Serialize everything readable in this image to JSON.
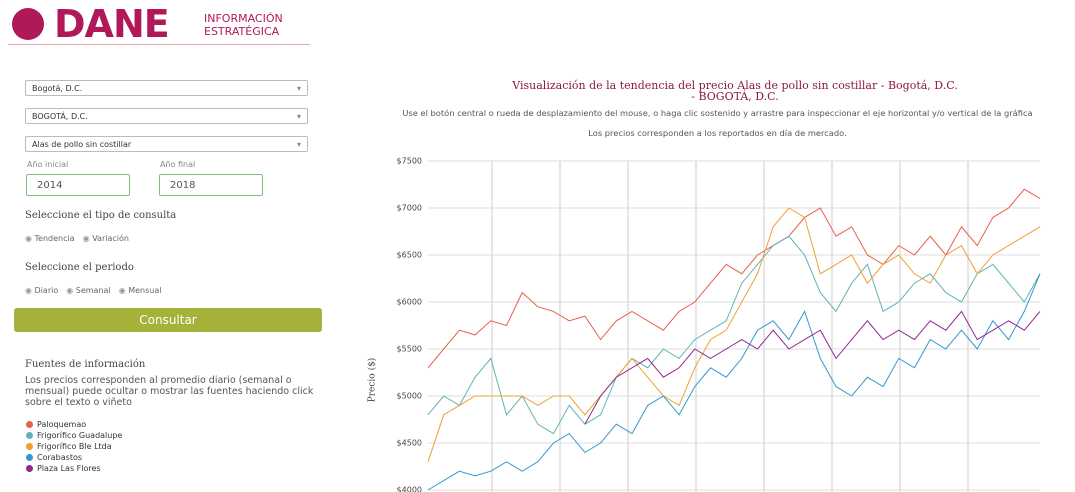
{
  "header": {
    "brand": "DANE",
    "tagline": [
      "INFORMACIÓN",
      "ESTRATÉGICA"
    ]
  },
  "form": {
    "department": "Bogotá, D.C.",
    "city": "BOGOTÁ, D.C.",
    "product": "Alas de pollo sin costillar",
    "start_label": "Año inicial",
    "end_label": "Año final",
    "start_year": "2014",
    "end_year": "2018",
    "query_type_label": "Seleccione el tipo de consulta",
    "query_types": [
      "Tendencia",
      "Variación"
    ],
    "period_label": "Seleccione el periodo",
    "periods": [
      "Diario",
      "Semanal",
      "Mensual"
    ],
    "button": "Consultar",
    "sources_title": "Fuentes de información",
    "sources_text": "Los precios corresponden al promedio diario (semanal o mensual) puede ocultar o mostrar las fuentes haciendo click sobre el texto o viñeto"
  },
  "chart_data": {
    "type": "line",
    "title": "Visualización de la tendencia del precio Alas de pollo sin costillar - Bogotá, D.C. - BOGOTÁ, D.C.",
    "subtitle": "Use el botón central o rueda de desplazamiento del mouse, o haga clic sostenido y arrastre para inspeccionar el eje horizontal y/o vertical de la gráfica",
    "note": "Los precios corresponden a los reportados en día de mercado.",
    "ylabel": "Precio ($)",
    "ylim": [
      4000,
      7500
    ],
    "yticks": [
      {
        "value": 4000,
        "label": "$4000"
      },
      {
        "value": 4500,
        "label": "$4500"
      },
      {
        "value": 5000,
        "label": "$5000"
      },
      {
        "value": 5500,
        "label": "$5500"
      },
      {
        "value": 6000,
        "label": "$6000"
      },
      {
        "value": 6500,
        "label": "$6500"
      },
      {
        "value": 7000,
        "label": "$7000"
      },
      {
        "value": 7500,
        "label": "$7500"
      }
    ],
    "grid": true,
    "series": [
      {
        "name": "Paloquemao",
        "color": "#e8604c",
        "values": [
          5300,
          5500,
          5700,
          5650,
          5800,
          5750,
          6100,
          5950,
          5900,
          5800,
          5850,
          5600,
          5800,
          5900,
          5800,
          5700,
          5900,
          6000,
          6200,
          6400,
          6300,
          6500,
          6600,
          6700,
          6900,
          7000,
          6700,
          6800,
          6500,
          6400,
          6600,
          6500,
          6700,
          6500,
          6800,
          6600,
          6900,
          7000,
          7200,
          7100
        ]
      },
      {
        "name": "Frigorífico Guadalupe",
        "color": "#5fb3b3",
        "values": [
          4800,
          5000,
          4900,
          5200,
          5400,
          4800,
          5000,
          4700,
          4600,
          4900,
          4700,
          4800,
          5200,
          5400,
          5300,
          5500,
          5400,
          5600,
          5700,
          5800,
          6200,
          6400,
          6600,
          6700,
          6500,
          6100,
          5900,
          6200,
          6400,
          5900,
          6000,
          6200,
          6300,
          6100,
          6000,
          6300,
          6400,
          6200,
          6000,
          6300
        ]
      },
      {
        "name": "Frigorífico Ble Ltda",
        "color": "#f0a030",
        "values": [
          4300,
          4800,
          4900,
          5000,
          5000,
          5000,
          5000,
          4900,
          5000,
          5000,
          4800,
          5000,
          5200,
          5400,
          5200,
          5000,
          4900,
          5300,
          5600,
          5700,
          6000,
          6300,
          6800,
          7000,
          6900,
          6300,
          6400,
          6500,
          6200,
          6400,
          6500,
          6300,
          6200,
          6500,
          6600,
          6300,
          6500,
          6600,
          6700,
          6800
        ]
      },
      {
        "name": "Corabastos",
        "color": "#3399cc",
        "values": [
          4000,
          4100,
          4200,
          4150,
          4200,
          4300,
          4200,
          4300,
          4500,
          4600,
          4400,
          4500,
          4700,
          4600,
          4900,
          5000,
          4800,
          5100,
          5300,
          5200,
          5400,
          5700,
          5800,
          5600,
          5900,
          5400,
          5100,
          5000,
          5200,
          5100,
          5400,
          5300,
          5600,
          5500,
          5700,
          5500,
          5800,
          5600,
          5900,
          6300
        ]
      },
      {
        "name": "Plaza Las Flores",
        "color": "#8e2a8e",
        "values": [
          null,
          null,
          null,
          null,
          null,
          null,
          null,
          null,
          null,
          null,
          4700,
          5000,
          5200,
          5300,
          5400,
          5200,
          5300,
          5500,
          5400,
          5500,
          5600,
          5500,
          5700,
          5500,
          5600,
          5700,
          5400,
          5600,
          5800,
          5600,
          5700,
          5600,
          5800,
          5700,
          5900,
          5600,
          5700,
          5800,
          5700,
          5900
        ]
      }
    ]
  }
}
